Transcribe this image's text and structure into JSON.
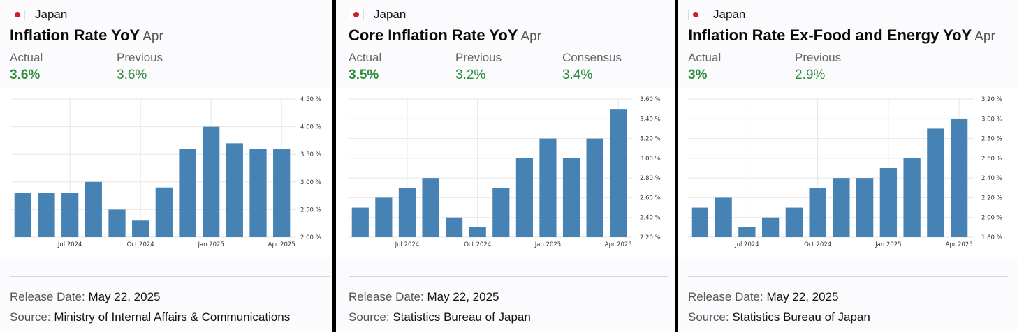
{
  "colors": {
    "bar": "#4682b4",
    "grid": "#e6e6e6",
    "positive": "#2e8b3a",
    "flag_red": "#d11a2a"
  },
  "panels": [
    {
      "country": "Japan",
      "flag_icon": "japan-flag-icon",
      "title": "Inflation Rate YoY",
      "period": "Apr",
      "stats": [
        {
          "label": "Actual",
          "value": "3.6%",
          "bold": true
        },
        {
          "label": "Previous",
          "value": "3.6%",
          "bold": false
        }
      ],
      "release_label": "Release Date:",
      "release_date": "May 22, 2025",
      "source_label": "Source:",
      "source": "Ministry of Internal Affairs & Communications"
    },
    {
      "country": "Japan",
      "flag_icon": "japan-flag-icon",
      "title": "Core Inflation Rate YoY",
      "period": "Apr",
      "stats": [
        {
          "label": "Actual",
          "value": "3.5%",
          "bold": true
        },
        {
          "label": "Previous",
          "value": "3.2%",
          "bold": false
        },
        {
          "label": "Consensus",
          "value": "3.4%",
          "bold": false
        }
      ],
      "release_label": "Release Date:",
      "release_date": "May 22, 2025",
      "source_label": "Source:",
      "source": "Statistics Bureau of Japan"
    },
    {
      "country": "Japan",
      "flag_icon": "japan-flag-icon",
      "title": "Inflation Rate Ex-Food and Energy YoY",
      "period": "Apr",
      "stats": [
        {
          "label": "Actual",
          "value": "3%",
          "bold": true
        },
        {
          "label": "Previous",
          "value": "2.9%",
          "bold": false
        }
      ],
      "release_label": "Release Date:",
      "release_date": "May 22, 2025",
      "source_label": "Source:",
      "source": "Statistics Bureau of Japan"
    }
  ],
  "chart_data": [
    {
      "type": "bar",
      "title": "Inflation Rate YoY",
      "categories": [
        "May 2024",
        "Jun 2024",
        "Jul 2024",
        "Aug 2024",
        "Sep 2024",
        "Oct 2024",
        "Nov 2024",
        "Dec 2024",
        "Jan 2025",
        "Feb 2025",
        "Mar 2025",
        "Apr 2025"
      ],
      "values": [
        2.8,
        2.8,
        2.8,
        3.0,
        2.5,
        2.3,
        2.9,
        3.6,
        4.0,
        3.7,
        3.6,
        3.6
      ],
      "ylim": [
        2.0,
        4.5
      ],
      "yticks": [
        "2.00 %",
        "2.50 %",
        "3.00 %",
        "3.50 %",
        "4.00 %",
        "4.50 %"
      ],
      "ytick_values": [
        2.0,
        2.5,
        3.0,
        3.5,
        4.0,
        4.5
      ],
      "xtick_labels": [
        {
          "index": 2,
          "label": "Jul 2024"
        },
        {
          "index": 5,
          "label": "Oct 2024"
        },
        {
          "index": 8,
          "label": "Jan 2025"
        },
        {
          "index": 11,
          "label": "Apr 2025"
        }
      ],
      "grid": true
    },
    {
      "type": "bar",
      "title": "Core Inflation Rate YoY",
      "categories": [
        "May 2024",
        "Jun 2024",
        "Jul 2024",
        "Aug 2024",
        "Sep 2024",
        "Oct 2024",
        "Nov 2024",
        "Dec 2024",
        "Jan 2025",
        "Feb 2025",
        "Mar 2025",
        "Apr 2025"
      ],
      "values": [
        2.5,
        2.6,
        2.7,
        2.8,
        2.4,
        2.3,
        2.7,
        3.0,
        3.2,
        3.0,
        3.2,
        3.5
      ],
      "ylim": [
        2.2,
        3.6
      ],
      "yticks": [
        "2.20 %",
        "2.40 %",
        "2.60 %",
        "2.80 %",
        "3.00 %",
        "3.20 %",
        "3.40 %",
        "3.60 %"
      ],
      "ytick_values": [
        2.2,
        2.4,
        2.6,
        2.8,
        3.0,
        3.2,
        3.4,
        3.6
      ],
      "xtick_labels": [
        {
          "index": 2,
          "label": "Jul 2024"
        },
        {
          "index": 5,
          "label": "Oct 2024"
        },
        {
          "index": 8,
          "label": "Jan 2025"
        },
        {
          "index": 11,
          "label": "Apr 2025"
        }
      ],
      "grid": true
    },
    {
      "type": "bar",
      "title": "Inflation Rate Ex-Food and Energy YoY",
      "categories": [
        "May 2024",
        "Jun 2024",
        "Jul 2024",
        "Aug 2024",
        "Sep 2024",
        "Oct 2024",
        "Nov 2024",
        "Dec 2024",
        "Jan 2025",
        "Feb 2025",
        "Mar 2025",
        "Apr 2025"
      ],
      "values": [
        2.1,
        2.2,
        1.9,
        2.0,
        2.1,
        2.3,
        2.4,
        2.4,
        2.5,
        2.6,
        2.9,
        3.0
      ],
      "ylim": [
        1.8,
        3.2
      ],
      "yticks": [
        "1.80 %",
        "2.00 %",
        "2.20 %",
        "2.40 %",
        "2.60 %",
        "2.80 %",
        "3.00 %",
        "3.20 %"
      ],
      "ytick_values": [
        1.8,
        2.0,
        2.2,
        2.4,
        2.6,
        2.8,
        3.0,
        3.2
      ],
      "xtick_labels": [
        {
          "index": 2,
          "label": "Jul 2024"
        },
        {
          "index": 5,
          "label": "Oct 2024"
        },
        {
          "index": 8,
          "label": "Jan 2025"
        },
        {
          "index": 11,
          "label": "Apr 2025"
        }
      ],
      "grid": true
    }
  ]
}
